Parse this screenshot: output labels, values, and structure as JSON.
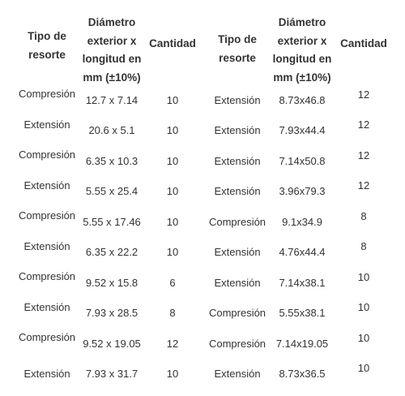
{
  "headers": {
    "tipo": [
      "Tipo de",
      "resorte"
    ],
    "diametro": [
      "Diámetro",
      "exterior x",
      "longitud en",
      "mm (±10%)"
    ],
    "cantidad": "Cantidad"
  },
  "left_rows": [
    {
      "tipo": "Compresión",
      "medida": "12.7 x 7.14",
      "cantidad": "10"
    },
    {
      "tipo": "Extensión",
      "medida": "20.6 x 5.1",
      "cantidad": "10"
    },
    {
      "tipo": "Compresión",
      "medida": "6.35 x 10.3",
      "cantidad": "10"
    },
    {
      "tipo": "Extensión",
      "medida": "5.55 x 25.4",
      "cantidad": "10"
    },
    {
      "tipo": "Compresión",
      "medida": "5.55 x 17.46",
      "cantidad": "10"
    },
    {
      "tipo": "Extensión",
      "medida": "6.35 x 22.2",
      "cantidad": "10"
    },
    {
      "tipo": "Compresión",
      "medida": "9.52 x 15.8",
      "cantidad": "6"
    },
    {
      "tipo": "Extensión",
      "medida": "7.93 x 28.5",
      "cantidad": "8"
    },
    {
      "tipo": "Compresión",
      "medida": "9.52 x 19.05",
      "cantidad": "12"
    },
    {
      "tipo": "Extensión",
      "medida": "7.93 x 31.7",
      "cantidad": "10"
    }
  ],
  "right_rows": [
    {
      "tipo": "Extensión",
      "medida": "8.73x46.8",
      "cantidad": "12"
    },
    {
      "tipo": "Extensión",
      "medida": "7.93x44.4",
      "cantidad": "12"
    },
    {
      "tipo": "Extensión",
      "medida": "7.14x50.8",
      "cantidad": "12"
    },
    {
      "tipo": "Extensión",
      "medida": "3.96x79.3",
      "cantidad": "12"
    },
    {
      "tipo": "Compresión",
      "medida": "9.1x34.9",
      "cantidad": "8"
    },
    {
      "tipo": "Extensión",
      "medida": "4.76x44.4",
      "cantidad": "8"
    },
    {
      "tipo": "Extensión",
      "medida": "7.14x38.1",
      "cantidad": "10"
    },
    {
      "tipo": "Compresión",
      "medida": "5.55x38.1",
      "cantidad": "10"
    },
    {
      "tipo": "Compresión",
      "medida": "7.14x19.05",
      "cantidad": "10"
    },
    {
      "tipo": "Extensión",
      "medida": "8.73x36.5",
      "cantidad": "10"
    }
  ]
}
